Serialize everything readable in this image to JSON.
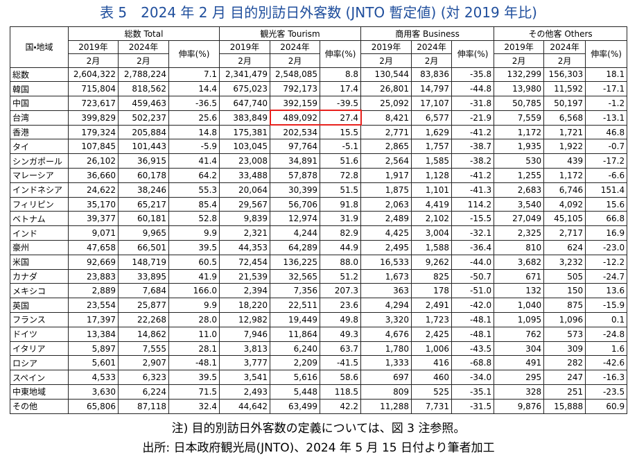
{
  "title": "表 5　2024 年 2 月 目的別訪日外客数 (JNTO 暫定値) (対 2019 年比)",
  "header": {
    "region": "国・地域",
    "groups": [
      "総数 Total",
      "観光客 Tourism",
      "商用客 Business",
      "その他客 Others"
    ],
    "years": [
      "2019年",
      "2024年"
    ],
    "growth": "伸率(%)",
    "month": "2月"
  },
  "table": {
    "rows": [
      [
        "総数",
        "2,604,322",
        "2,788,224",
        "7.1",
        "2,341,479",
        "2,548,085",
        "8.8",
        "130,544",
        "83,836",
        "-35.8",
        "132,299",
        "156,303",
        "18.1"
      ],
      [
        "韓国",
        "715,804",
        "818,562",
        "14.4",
        "675,023",
        "792,173",
        "17.4",
        "26,801",
        "14,797",
        "-44.8",
        "13,980",
        "11,592",
        "-17.1"
      ],
      [
        "中国",
        "723,617",
        "459,463",
        "-36.5",
        "647,740",
        "392,159",
        "-39.5",
        "25,092",
        "17,107",
        "-31.8",
        "50,785",
        "50,197",
        "-1.2"
      ],
      [
        "台湾",
        "399,829",
        "502,237",
        "25.6",
        "383,849",
        "489,092",
        "27.4",
        "8,421",
        "6,577",
        "-21.9",
        "7,559",
        "6,568",
        "-13.1"
      ],
      [
        "香港",
        "179,324",
        "205,884",
        "14.8",
        "175,381",
        "202,534",
        "15.5",
        "2,771",
        "1,629",
        "-41.2",
        "1,172",
        "1,721",
        "46.8"
      ],
      [
        "タイ",
        "107,845",
        "101,443",
        "-5.9",
        "103,045",
        "97,764",
        "-5.1",
        "2,865",
        "1,757",
        "-38.7",
        "1,935",
        "1,922",
        "-0.7"
      ],
      [
        "シンガポール",
        "26,102",
        "36,915",
        "41.4",
        "23,008",
        "34,891",
        "51.6",
        "2,564",
        "1,585",
        "-38.2",
        "530",
        "439",
        "-17.2"
      ],
      [
        "マレーシア",
        "36,660",
        "60,178",
        "64.2",
        "33,488",
        "57,878",
        "72.8",
        "1,917",
        "1,128",
        "-41.2",
        "1,255",
        "1,172",
        "-6.6"
      ],
      [
        "インドネシア",
        "24,622",
        "38,246",
        "55.3",
        "20,064",
        "30,399",
        "51.5",
        "1,875",
        "1,101",
        "-41.3",
        "2,683",
        "6,746",
        "151.4"
      ],
      [
        "フィリピン",
        "35,170",
        "65,217",
        "85.4",
        "29,567",
        "56,706",
        "91.8",
        "2,063",
        "4,419",
        "114.2",
        "3,540",
        "4,092",
        "15.6"
      ],
      [
        "ベトナム",
        "39,377",
        "60,181",
        "52.8",
        "9,839",
        "12,974",
        "31.9",
        "2,489",
        "2,102",
        "-15.5",
        "27,049",
        "45,105",
        "66.8"
      ],
      [
        "インド",
        "9,071",
        "9,965",
        "9.9",
        "2,321",
        "4,244",
        "82.9",
        "4,425",
        "3,004",
        "-32.1",
        "2,325",
        "2,717",
        "16.9"
      ],
      [
        "豪州",
        "47,658",
        "66,501",
        "39.5",
        "44,353",
        "64,289",
        "44.9",
        "2,495",
        "1,588",
        "-36.4",
        "810",
        "624",
        "-23.0"
      ],
      [
        "米国",
        "92,669",
        "148,719",
        "60.5",
        "72,454",
        "136,225",
        "88.0",
        "16,533",
        "9,262",
        "-44.0",
        "3,682",
        "3,232",
        "-12.2"
      ],
      [
        "カナダ",
        "23,883",
        "33,895",
        "41.9",
        "21,539",
        "32,565",
        "51.2",
        "1,673",
        "825",
        "-50.7",
        "671",
        "505",
        "-24.7"
      ],
      [
        "メキシコ",
        "2,889",
        "7,684",
        "166.0",
        "2,394",
        "7,356",
        "207.3",
        "363",
        "178",
        "-51.0",
        "132",
        "150",
        "13.6"
      ],
      [
        "英国",
        "23,554",
        "25,877",
        "9.9",
        "18,220",
        "22,511",
        "23.6",
        "4,294",
        "2,491",
        "-42.0",
        "1,040",
        "875",
        "-15.9"
      ],
      [
        "フランス",
        "17,397",
        "22,268",
        "28.0",
        "12,982",
        "19,449",
        "49.8",
        "3,320",
        "1,723",
        "-48.1",
        "1,095",
        "1,096",
        "0.1"
      ],
      [
        "ドイツ",
        "13,384",
        "14,862",
        "11.0",
        "7,946",
        "11,864",
        "49.3",
        "4,676",
        "2,425",
        "-48.1",
        "762",
        "573",
        "-24.8"
      ],
      [
        "イタリア",
        "5,897",
        "7,555",
        "28.1",
        "3,813",
        "6,240",
        "63.7",
        "1,780",
        "1,006",
        "-43.5",
        "304",
        "309",
        "1.6"
      ],
      [
        "ロシア",
        "5,601",
        "2,907",
        "-48.1",
        "3,777",
        "2,209",
        "-41.5",
        "1,333",
        "416",
        "-68.8",
        "491",
        "282",
        "-42.6"
      ],
      [
        "スペイン",
        "4,533",
        "6,323",
        "39.5",
        "3,541",
        "5,616",
        "58.6",
        "697",
        "460",
        "-34.0",
        "295",
        "247",
        "-16.3"
      ],
      [
        "中東地域",
        "3,630",
        "6,224",
        "71.5",
        "2,493",
        "5,448",
        "118.5",
        "809",
        "525",
        "-35.1",
        "328",
        "251",
        "-23.5"
      ],
      [
        "その他",
        "65,806",
        "87,118",
        "32.4",
        "44,642",
        "63,499",
        "42.2",
        "11,288",
        "7,731",
        "-31.5",
        "9,876",
        "15,888",
        "60.9"
      ]
    ]
  },
  "notes": [
    "注)  目的別訪日外客数の定義については、図 3 注参照。",
    "出所:  日本政府観光局(JNTO)、2024 年 5 月 15 日付より筆者加工"
  ]
}
